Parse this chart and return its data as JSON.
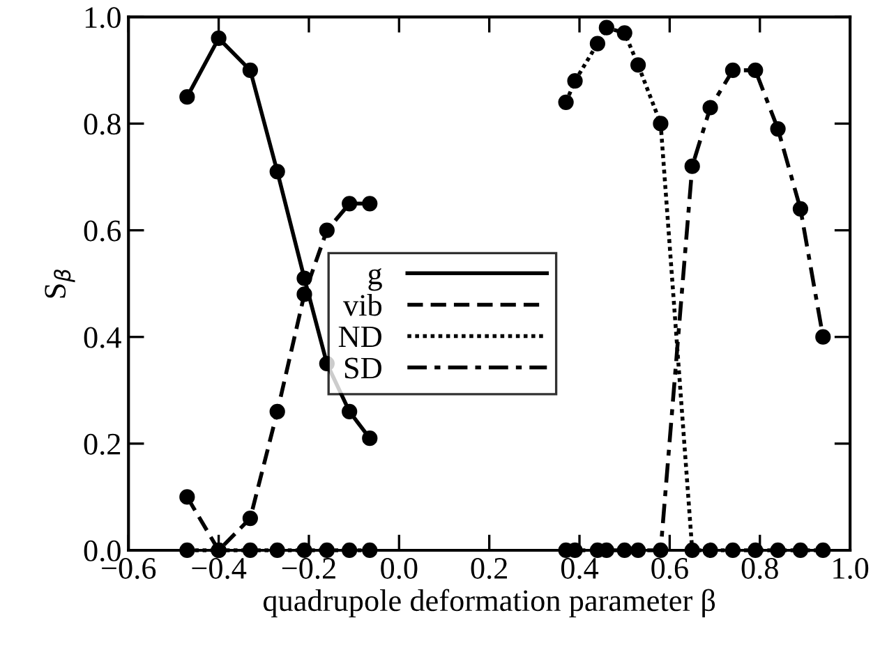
{
  "chart_data": {
    "type": "line",
    "xlabel": "quadrupole deformation parameter β",
    "ylabel": "S$_{β}$",
    "xlim": [
      -0.6,
      1.0
    ],
    "ylim": [
      0.0,
      1.0
    ],
    "xticks": [
      {
        "value": -0.6,
        "label": "−0.6"
      },
      {
        "value": -0.4,
        "label": "−0.4"
      },
      {
        "value": -0.2,
        "label": "−0.2"
      },
      {
        "value": 0.0,
        "label": "0.0"
      },
      {
        "value": 0.2,
        "label": "0.2"
      },
      {
        "value": 0.4,
        "label": "0.4"
      },
      {
        "value": 0.6,
        "label": "0.6"
      },
      {
        "value": 0.8,
        "label": "0.8"
      },
      {
        "value": 1.0,
        "label": "1.0"
      }
    ],
    "yticks": [
      {
        "value": 0.0,
        "label": "0.0"
      },
      {
        "value": 0.2,
        "label": "0.2"
      },
      {
        "value": 0.4,
        "label": "0.4"
      },
      {
        "value": 0.6,
        "label": "0.6"
      },
      {
        "value": 0.8,
        "label": "0.8"
      },
      {
        "value": 1.0,
        "label": "1.0"
      }
    ],
    "grid": false,
    "legend": "center",
    "marker": "circle",
    "series": [
      {
        "name": "g",
        "color": "#000000",
        "line_style": "solid",
        "x": [
          -0.47,
          -0.4,
          -0.33,
          -0.27,
          -0.21,
          -0.16,
          -0.11,
          -0.065
        ],
        "values": [
          0.85,
          0.96,
          0.9,
          0.71,
          0.51,
          0.35,
          0.26,
          0.21
        ]
      },
      {
        "name": "vib",
        "color": "#000000",
        "line_style": "dashed",
        "x": [
          -0.47,
          -0.4,
          -0.33,
          -0.27,
          -0.21,
          -0.16,
          -0.11,
          -0.065
        ],
        "values": [
          0.1,
          0.0,
          0.06,
          0.26,
          0.48,
          0.6,
          0.65,
          0.65
        ]
      },
      {
        "name": "ND",
        "color": "#000000",
        "line_style": "dotted",
        "x": [
          -0.47,
          -0.4,
          -0.33,
          -0.27,
          -0.21,
          -0.16,
          -0.11,
          -0.065,
          0.15,
          0.37,
          0.39,
          0.44,
          0.46,
          0.5,
          0.53,
          0.58,
          0.65,
          0.69,
          0.74,
          0.79,
          0.84,
          0.89,
          0.94
        ],
        "values": [
          0,
          0,
          0,
          0,
          0,
          0,
          0,
          0,
          null,
          0.84,
          0.88,
          0.95,
          0.98,
          0.97,
          0.91,
          0.8,
          0,
          0,
          0,
          0,
          0,
          0,
          0
        ]
      },
      {
        "name": "SD",
        "color": "#000000",
        "line_style": "dashdot",
        "x": [
          0.37,
          0.39,
          0.44,
          0.46,
          0.5,
          0.53,
          0.58,
          0.65,
          0.69,
          0.74,
          0.79,
          0.84,
          0.89,
          0.94
        ],
        "values": [
          0,
          0,
          0,
          0,
          0,
          0,
          0,
          0.72,
          0.83,
          0.9,
          0.9,
          0.79,
          0.64,
          0.4
        ]
      }
    ]
  }
}
